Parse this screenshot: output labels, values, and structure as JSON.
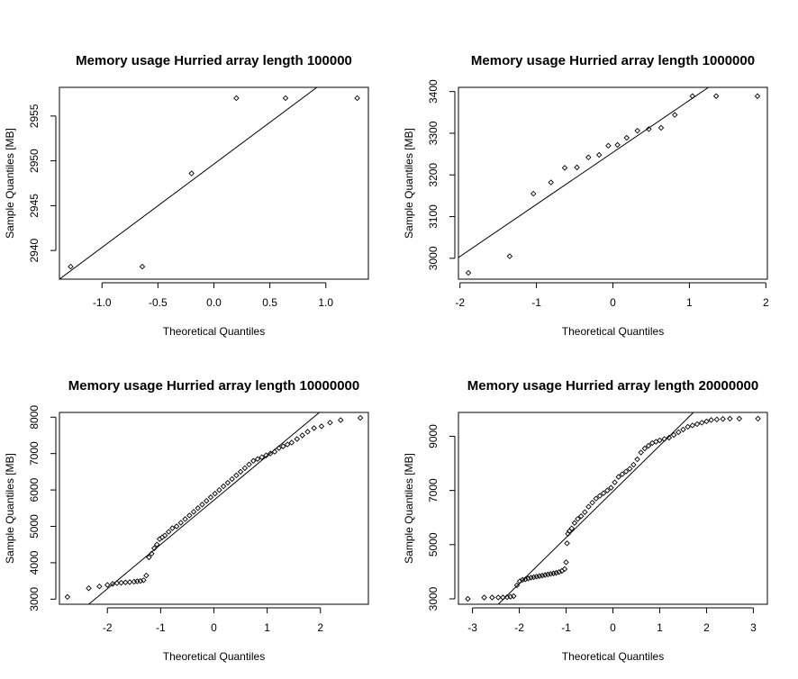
{
  "chart_data": [
    {
      "type": "scatter",
      "title": "Memory usage Hurried array length  100000",
      "xlabel": "Theoretical Quantiles",
      "ylabel": "Sample Quantiles [MB]",
      "xlim": [
        -1.38,
        1.38
      ],
      "ylim": [
        2936.8,
        2958.2
      ],
      "xticks": [
        -1.0,
        -0.5,
        0.0,
        0.5,
        1.0
      ],
      "xtick_labels": [
        "-1.0",
        "-0.5",
        "0.0",
        "0.5",
        "1.0"
      ],
      "yticks": [
        2940,
        2945,
        2950,
        2955
      ],
      "ytick_labels": [
        "2940",
        "2945",
        "2950",
        "2955"
      ],
      "grid": false,
      "series": [
        {
          "x": [
            -1.28,
            -0.64,
            -0.2,
            0.2,
            0.64,
            1.28
          ],
          "y": [
            2938.2,
            2938.2,
            2948.6,
            2957.0,
            2957.0,
            2957.0
          ]
        }
      ],
      "qq_line": [
        [
          -1.38,
          2936.8
        ],
        [
          0.92,
          2958.2
        ]
      ]
    },
    {
      "type": "scatter",
      "title": "Memory usage Hurried array length  1000000",
      "xlabel": "Theoretical Quantiles",
      "ylabel": "Sample Quantiles [MB]",
      "xlim": [
        -2.02,
        2.02
      ],
      "ylim": [
        2950,
        3410
      ],
      "xticks": [
        -2,
        -1,
        0,
        1,
        2
      ],
      "xtick_labels": [
        "-2",
        "-1",
        "0",
        "1",
        "2"
      ],
      "yticks": [
        3000,
        3100,
        3200,
        3300,
        3400
      ],
      "ytick_labels": [
        "3000",
        "3100",
        "3200",
        "3300",
        "3400"
      ],
      "grid": false,
      "series": [
        {
          "x": [
            -1.89,
            -1.35,
            -1.04,
            -0.81,
            -0.63,
            -0.47,
            -0.32,
            -0.18,
            -0.06,
            0.06,
            0.18,
            0.32,
            0.47,
            0.63,
            0.81,
            1.04,
            1.35,
            1.89
          ],
          "y": [
            2965,
            3005,
            3155,
            3182,
            3217,
            3218,
            3242,
            3248,
            3270,
            3272,
            3289,
            3306,
            3310,
            3313,
            3344,
            3389,
            3389,
            3389
          ]
        }
      ],
      "qq_line": [
        [
          -2.02,
          3002
        ],
        [
          1.25,
          3410
        ]
      ]
    },
    {
      "type": "scatter",
      "title": "Memory usage Hurried array length  10000000",
      "xlabel": "Theoretical Quantiles",
      "ylabel": "Sample Quantiles [MB]",
      "xlim": [
        -2.9,
        2.9
      ],
      "ylim": [
        2860,
        8130
      ],
      "xticks": [
        -2,
        -1,
        0,
        1,
        2
      ],
      "xtick_labels": [
        "-2",
        "-1",
        "0",
        "1",
        "2"
      ],
      "yticks": [
        3000,
        4000,
        5000,
        6000,
        7000,
        8000
      ],
      "ytick_labels": [
        "3000",
        "4000",
        "5000",
        "6000",
        "7000",
        "8000"
      ],
      "grid": false,
      "series": [
        {
          "x": [
            -2.75,
            -2.35,
            -2.15,
            -2.0,
            -1.9,
            -1.82,
            -1.74,
            -1.66,
            -1.58,
            -1.5,
            -1.44,
            -1.38,
            -1.32,
            -1.27,
            -1.22,
            -1.17,
            -1.12,
            -1.07,
            -1.02,
            -0.97,
            -0.92,
            -0.85,
            -0.78,
            -0.7,
            -0.62,
            -0.54,
            -0.46,
            -0.38,
            -0.3,
            -0.22,
            -0.14,
            -0.06,
            0.02,
            0.1,
            0.18,
            0.26,
            0.34,
            0.42,
            0.5,
            0.58,
            0.66,
            0.74,
            0.82,
            0.9,
            0.98,
            1.06,
            1.14,
            1.22,
            1.3,
            1.38,
            1.46,
            1.56,
            1.66,
            1.76,
            1.88,
            2.02,
            2.18,
            2.38,
            2.75
          ],
          "y": [
            3060,
            3300,
            3350,
            3390,
            3420,
            3440,
            3450,
            3460,
            3470,
            3480,
            3490,
            3500,
            3520,
            3650,
            4150,
            4250,
            4400,
            4500,
            4650,
            4700,
            4750,
            4850,
            4950,
            5000,
            5100,
            5200,
            5300,
            5400,
            5500,
            5600,
            5700,
            5800,
            5900,
            6000,
            6100,
            6200,
            6300,
            6400,
            6500,
            6600,
            6700,
            6800,
            6850,
            6900,
            6950,
            7000,
            7050,
            7150,
            7200,
            7250,
            7300,
            7400,
            7500,
            7600,
            7700,
            7750,
            7850,
            7920,
            7980
          ]
        }
      ],
      "qq_line": [
        [
          -2.35,
          2860
        ],
        [
          1.98,
          8130
        ]
      ]
    },
    {
      "type": "scatter",
      "title": "Memory usage Hurried array length  20000000",
      "xlabel": "Theoretical Quantiles",
      "ylabel": "Sample Quantiles [MB]",
      "xlim": [
        -3.3,
        3.3
      ],
      "ylim": [
        2800,
        9880
      ],
      "xticks": [
        -3,
        -2,
        -1,
        0,
        1,
        2,
        3
      ],
      "xtick_labels": [
        "-3",
        "-2",
        "-1",
        "0",
        "1",
        "2",
        "3"
      ],
      "yticks": [
        3000,
        5000,
        7000,
        9000
      ],
      "ytick_labels": [
        "3000",
        "5000",
        "7000",
        "9000"
      ],
      "grid": false,
      "series": [
        {
          "x": [
            -3.1,
            -2.75,
            -2.58,
            -2.45,
            -2.35,
            -2.26,
            -2.19,
            -2.12,
            -2.05,
            -1.99,
            -1.93,
            -1.87,
            -1.81,
            -1.75,
            -1.69,
            -1.63,
            -1.57,
            -1.51,
            -1.45,
            -1.39,
            -1.33,
            -1.27,
            -1.21,
            -1.15,
            -1.09,
            -1.03,
            -1.0,
            -0.98,
            -0.96,
            -0.93,
            -0.88,
            -0.82,
            -0.75,
            -0.68,
            -0.6,
            -0.52,
            -0.44,
            -0.36,
            -0.28,
            -0.2,
            -0.12,
            -0.04,
            0.04,
            0.12,
            0.2,
            0.28,
            0.36,
            0.44,
            0.52,
            0.6,
            0.68,
            0.76,
            0.84,
            0.92,
            1.0,
            1.1,
            1.2,
            1.3,
            1.4,
            1.5,
            1.6,
            1.7,
            1.8,
            1.9,
            2.0,
            2.1,
            2.22,
            2.35,
            2.5,
            2.7,
            3.1
          ],
          "y": [
            3000,
            3050,
            3050,
            3050,
            3050,
            3060,
            3080,
            3100,
            3500,
            3650,
            3700,
            3720,
            3750,
            3780,
            3800,
            3820,
            3840,
            3860,
            3880,
            3900,
            3920,
            3940,
            3960,
            3990,
            4030,
            4100,
            4350,
            5050,
            5400,
            5500,
            5600,
            5800,
            5950,
            6050,
            6200,
            6400,
            6550,
            6700,
            6800,
            6900,
            7000,
            7100,
            7300,
            7500,
            7600,
            7700,
            7800,
            7950,
            8150,
            8400,
            8550,
            8650,
            8750,
            8800,
            8850,
            8900,
            8950,
            9050,
            9150,
            9250,
            9350,
            9400,
            9450,
            9500,
            9550,
            9600,
            9620,
            9640,
            9650,
            9650,
            9650
          ]
        }
      ],
      "qq_line": [
        [
          -2.45,
          2800
        ],
        [
          1.72,
          9880
        ]
      ]
    }
  ]
}
